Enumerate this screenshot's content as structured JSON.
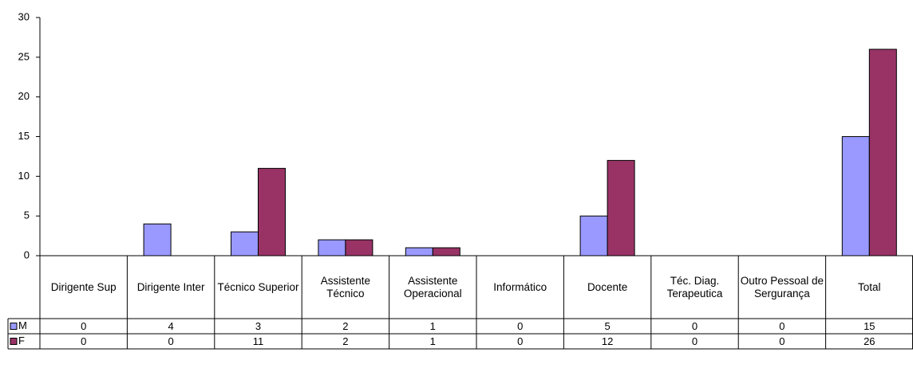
{
  "chart_data": {
    "type": "bar",
    "categories": [
      "Dirigente Sup",
      "Dirigente Inter",
      "Técnico Superior",
      "Assistente Técnico",
      "Assistente Operacional",
      "Informático",
      "Docente",
      "Téc. Diag. Terapeutica",
      "Outro Pessoal de Sergurança",
      "Total"
    ],
    "series": [
      {
        "name": "M",
        "color": "#9999ff",
        "values": [
          0,
          4,
          3,
          2,
          1,
          0,
          5,
          0,
          0,
          15
        ]
      },
      {
        "name": "F",
        "color": "#993366",
        "values": [
          0,
          0,
          11,
          2,
          1,
          0,
          12,
          0,
          0,
          26
        ]
      }
    ],
    "ylim": [
      0,
      30
    ],
    "yticks": [
      0,
      5,
      10,
      15,
      20,
      25,
      30
    ],
    "grid": false
  }
}
